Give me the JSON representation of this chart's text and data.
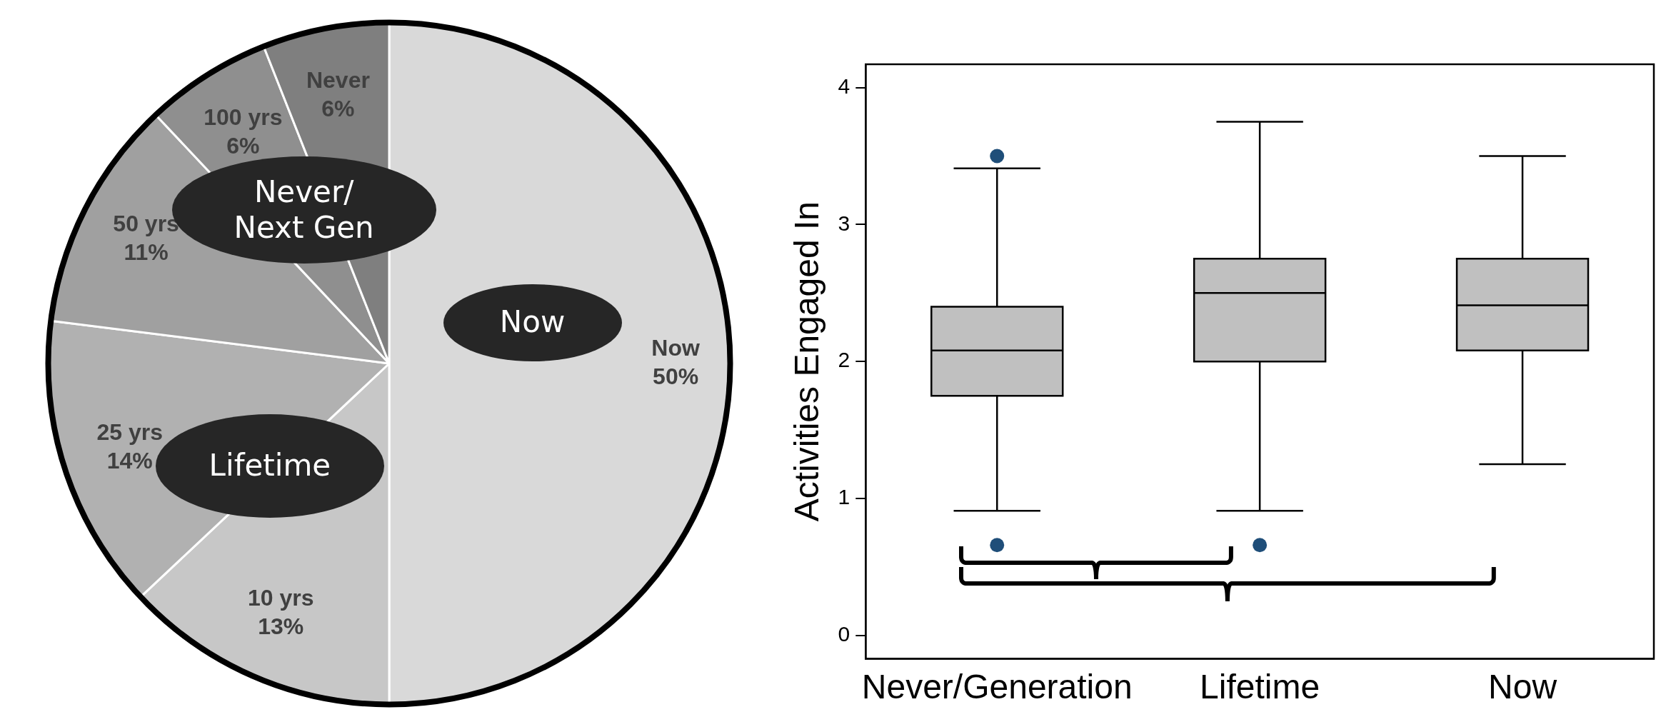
{
  "chart_data": [
    {
      "type": "pie",
      "categories": [
        "Now",
        "10 yrs",
        "25 yrs",
        "50 yrs",
        "100 yrs",
        "Never"
      ],
      "values": [
        50,
        13,
        14,
        11,
        6,
        6
      ],
      "value_labels": [
        "50%",
        "13%",
        "14%",
        "11%",
        "6%",
        "6%"
      ],
      "colors": [
        "#d9d9d9",
        "#c7c7c7",
        "#b1b1b1",
        "#a0a0a0",
        "#8f8f8f",
        "#7f7f7f"
      ],
      "annotations": [
        "Now",
        "Lifetime",
        "Never/\nNext Gen"
      ],
      "legend": false
    },
    {
      "type": "box",
      "categories": [
        "Never/Generation",
        "Lifetime",
        "Now"
      ],
      "ylabel": "Activities Engaged In",
      "ylim": [
        -0.17,
        4.17
      ],
      "yticks": [
        0,
        1,
        2,
        3,
        4
      ],
      "grid": false,
      "legend": false,
      "color": "#c0c0c0",
      "boxes": [
        {
          "low": 0.91,
          "q1": 1.75,
          "median": 2.08,
          "q3": 2.4,
          "high": 3.41,
          "outliers": [
            3.5,
            0.66
          ]
        },
        {
          "low": 0.91,
          "q1": 2.0,
          "median": 2.5,
          "q3": 2.75,
          "high": 3.75,
          "outliers": [
            0.66
          ]
        },
        {
          "low": 1.25,
          "q1": 2.08,
          "median": 2.41,
          "q3": 2.75,
          "high": 3.5
        }
      ]
    }
  ]
}
